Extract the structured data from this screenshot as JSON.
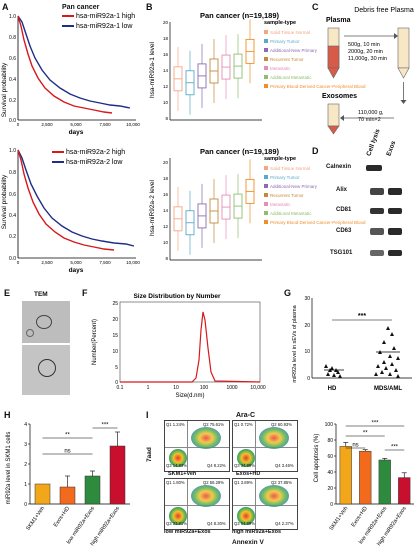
{
  "panels": {
    "a": "A",
    "b": "B",
    "c": "C",
    "d": "D",
    "e": "E",
    "f": "F",
    "g": "G",
    "h": "H",
    "i": "I"
  },
  "A": {
    "title": "Pan cancer",
    "ylabel": "Survival probability",
    "xlabel": "days",
    "top": {
      "legend_high": "hsa-miR92a-1 high",
      "legend_low": "hsa-miR92a-1 low"
    },
    "bottom": {
      "legend_high": "hsa-miR92a-2 high",
      "legend_low": "hsa-miR92a-2 low"
    },
    "yticks": [
      "1.0",
      "0.8",
      "0.6",
      "0.4",
      "0.2",
      "0.0"
    ],
    "xticks": [
      "0",
      "2,500",
      "5,000",
      "7,500",
      "10,000"
    ],
    "colors": {
      "high": "#d7191c",
      "low": "#1f2d86"
    }
  },
  "B": {
    "top_title": "Pan cancer (n=19,189)",
    "top_ylabel": "hsa-miR92a-1 level",
    "bottom_title": "Pan cancer (n=19,189)",
    "bottom_ylabel": "hsa-miR92a-2 level",
    "yticks": [
      "20",
      "18",
      "16",
      "14",
      "12",
      "10",
      "8"
    ],
    "legend_title": "sample-type",
    "legend": [
      {
        "label": "Solid Tissue Normal",
        "color": "#f4a582"
      },
      {
        "label": "Primary Tumor",
        "color": "#5aa9c8"
      },
      {
        "label": "Additional-New Primary",
        "color": "#8c6bb1"
      },
      {
        "label": "Recurrent Tumor",
        "color": "#c48a3a"
      },
      {
        "label": "Metastatic",
        "color": "#e48fb8"
      },
      {
        "label": "Additional Metastatic",
        "color": "#8fbf6a"
      },
      {
        "label": "Primary Blood Derived Cancer-Peripheral Blood",
        "color": "#f08e2a"
      }
    ]
  },
  "C": {
    "plasma": "Plasma",
    "debris_free": "Debris free Plasma",
    "steps": [
      "500g, 10 min",
      "2000g, 20 min",
      "11,000g, 30 min"
    ],
    "exosomes": "Exosomes",
    "uc": [
      "110,000 g,",
      "70 min×2"
    ]
  },
  "D": {
    "col1": "Cell lysis",
    "col2": "Exos",
    "rows": [
      "Calnexin",
      "Alix",
      "CD81",
      "CD63",
      "TSG101"
    ]
  },
  "E": {
    "title": "TEM"
  },
  "F": {
    "title": "Size Distribution by Number",
    "ylabel": "Number(Percent)",
    "xlabel": "Size(d.nm)",
    "yticks": [
      "25",
      "20",
      "15",
      "10",
      "5",
      "0"
    ],
    "xticks": [
      "0.1",
      "1",
      "10",
      "100",
      "1000",
      "10,000"
    ]
  },
  "G": {
    "ylabel": "miR92a level in sEVs of plasma",
    "categories": [
      "HD",
      "MDS/AML"
    ],
    "yticks": [
      "30",
      "20",
      "10",
      "0"
    ],
    "sig": "***",
    "ylim": [
      0,
      30
    ]
  },
  "H": {
    "ylabel": "miR92a level in SKM1 cells",
    "sig": [
      "ns",
      "**",
      "***"
    ]
  },
  "I": {
    "flow_title": "Ara-C",
    "ylabel": "7aad",
    "xlabel": "Annexin V",
    "plots": [
      {
        "name": "SKM1+Veh",
        "q1": "Q1 1.24%",
        "q2": "Q2 75.61%",
        "q3": "Q3 14.83%",
        "q4": "Q4 8.22%"
      },
      {
        "name": "Exos+HD",
        "q1": "Q1 0.72%",
        "q2": "Q2 60.93%",
        "q3": "Q3 34.89%",
        "q4": "Q4 3.46%"
      },
      {
        "name": "low miR92a+Exos",
        "q1": "Q1 1.80%",
        "q2": "Q2 56.29%",
        "q3": "Q3 33.61%",
        "q4": "Q4 8.30%"
      },
      {
        "name": "high miR92a+Exos",
        "q1": "Q1 3.89%",
        "q2": "Q2 37.85%",
        "q3": "Q3 54.89%",
        "q4": "Q4 2.37%"
      }
    ],
    "bar_ylabel": "Cell apoptosis (%)",
    "sig": [
      "ns",
      "**",
      "***",
      "***"
    ]
  },
  "chart_data": [
    {
      "type": "bar",
      "panel": "H",
      "ylabel": "miR92a level in SKM1 cells",
      "categories": [
        "SKM1+Veh",
        "Exos+HD",
        "low miR92a+Exos",
        "high miR92a+Exos"
      ],
      "values": [
        1.0,
        0.85,
        1.4,
        2.9
      ],
      "errors": [
        0.0,
        0.55,
        0.25,
        0.7
      ],
      "colors": [
        "#f2a71b",
        "#f26a1b",
        "#2e8b3e",
        "#c8102e"
      ],
      "yticks": [
        0,
        1,
        2,
        3,
        4
      ],
      "ylim": [
        0,
        4
      ]
    },
    {
      "type": "bar",
      "panel": "I",
      "ylabel": "Cell apoptosis (%)",
      "categories": [
        "SKM1+Veh",
        "Exos+HD",
        "low miR92a+Exos",
        "high miR92a+Exos"
      ],
      "values": [
        72,
        66,
        55,
        33
      ],
      "errors": [
        5,
        2,
        2,
        6
      ],
      "colors": [
        "#f2a71b",
        "#f26a1b",
        "#2e8b3e",
        "#c8102e"
      ],
      "yticks": [
        0,
        20,
        40,
        60,
        80,
        100
      ],
      "ylim": [
        0,
        100
      ]
    }
  ]
}
